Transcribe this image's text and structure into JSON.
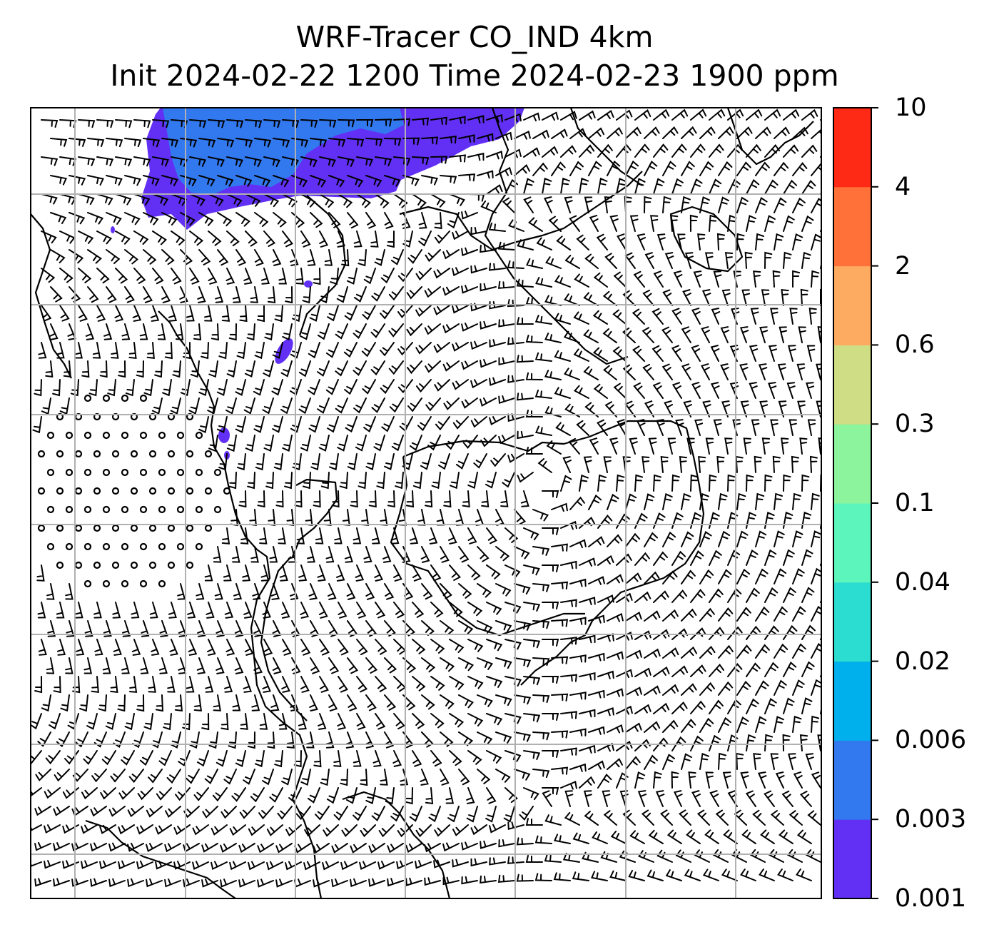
{
  "title": {
    "line1": "WRF-Tracer CO_IND 4km",
    "line2": "Init 2024-02-22 1200 Time 2024-02-23 1900 ppm"
  },
  "map": {
    "grid": true,
    "wind_barbs": true,
    "coastlines": true,
    "tracer_fill_color_low": "#6230f5",
    "tracer_fill_color_mid": "#3279f0"
  },
  "colorbar": {
    "labels": [
      "0.001",
      "0.003",
      "0.006",
      "0.02",
      "0.04",
      "0.1",
      "0.3",
      "0.6",
      "2",
      "4",
      "10"
    ],
    "colors": [
      "#6230f5",
      "#3279f0",
      "#00b0ec",
      "#2bdcd0",
      "#5cf6bc",
      "#8cf49c",
      "#cfdd85",
      "#fdab61",
      "#ff7139",
      "#ff2a16"
    ]
  }
}
